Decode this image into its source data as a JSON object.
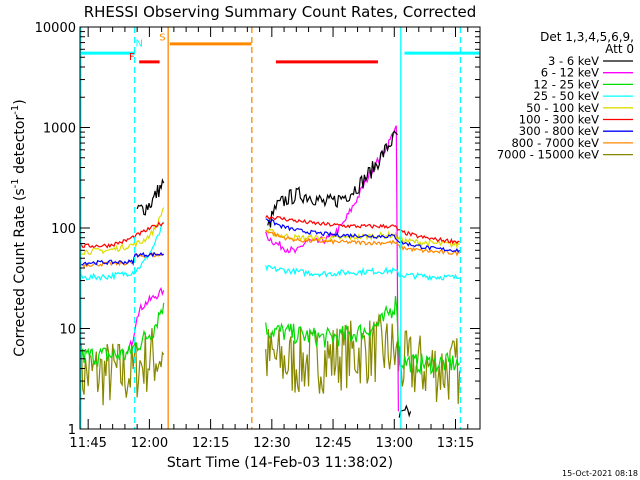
{
  "chart_data": {
    "type": "line",
    "title": "RHESSI Observing Summary Count Rates, Corrected",
    "xlabel": "Start Time (14-Feb-03 11:38:02)",
    "ylabel_main": "Corrected Count Rate (s",
    "ylabel_sup1": "-1",
    "ylabel_mid": " detector",
    "ylabel_sup2": "-1",
    "ylabel_end": ")",
    "footer": "15-Oct-2021 08:18",
    "y_scale": "log",
    "ylim": [
      1,
      10000
    ],
    "xlim": [
      -17,
      81
    ],
    "y_ticks": [
      {
        "v": 1,
        "label": "1"
      },
      {
        "v": 10,
        "label": "10"
      },
      {
        "v": 100,
        "label": "100"
      },
      {
        "v": 1000,
        "label": "1000"
      },
      {
        "v": 10000,
        "label": "10000"
      }
    ],
    "x_ticks": [
      {
        "t": -15,
        "label": "11:45"
      },
      {
        "t": 0,
        "label": "12:00"
      },
      {
        "t": 15,
        "label": "12:15"
      },
      {
        "t": 30,
        "label": "12:30"
      },
      {
        "t": 45,
        "label": "12:45"
      },
      {
        "t": 60,
        "label": "13:00"
      },
      {
        "t": 75,
        "label": "13:15"
      }
    ],
    "legend": {
      "header1": "Det 1,3,4,5,6,9,",
      "header2": "Att 0",
      "items": [
        {
          "label": "3 - 6 keV",
          "color": "#000000"
        },
        {
          "label": "6 - 12 keV",
          "color": "#ff00ff"
        },
        {
          "label": "12 - 25 keV",
          "color": "#00dd00"
        },
        {
          "label": "25 - 50 keV",
          "color": "#00ffff"
        },
        {
          "label": "50 - 100 keV",
          "color": "#dddd00"
        },
        {
          "label": "100 - 300 keV",
          "color": "#ff0000"
        },
        {
          "label": "300 - 800 keV",
          "color": "#0000ff"
        },
        {
          "label": "800 - 7000 keV",
          "color": "#ff8800"
        },
        {
          "label": "7000 - 15000 keV",
          "color": "#888800"
        }
      ]
    },
    "flags": [
      {
        "label": "N",
        "color": "#00ffff",
        "segments": [
          [
            -17,
            -3.5
          ],
          [
            62.5,
            81
          ]
        ],
        "y": 5500
      },
      {
        "label": "F",
        "color": "#ff0000",
        "segments": [
          [
            -2.5,
            2.5
          ],
          [
            31,
            56
          ]
        ],
        "y": 4500
      },
      {
        "label": "S",
        "color": "#ff8800",
        "segments": [
          [
            5,
            25
          ]
        ],
        "y": 6800
      }
    ],
    "flag_letters": [
      {
        "text": "N",
        "color": "#00ffff",
        "t": -2.5,
        "y": 6400
      },
      {
        "text": "F",
        "color": "#ff0000",
        "t": -4.3,
        "y": 4700
      },
      {
        "text": "S",
        "color": "#ff8800",
        "t": 3.2,
        "y": 7300
      }
    ],
    "vlines": [
      {
        "t": -16.8,
        "color": "#00ffff",
        "dash": false
      },
      {
        "t": -3.6,
        "color": "#00ffff",
        "dash": true
      },
      {
        "t": 4.6,
        "color": "#ff8800",
        "dash": false
      },
      {
        "t": 25.1,
        "color": "#ff8800",
        "dash": true
      },
      {
        "t": 61.6,
        "color": "#00ffff",
        "dash": false
      },
      {
        "t": 76.2,
        "color": "#00ffff",
        "dash": true
      }
    ],
    "series": [
      {
        "name": "7000 - 15000 keV",
        "color": "#888800",
        "noise": 0.35,
        "segments": [
          [
            [
              -17,
              3.5
            ],
            [
              -4,
              3.6
            ],
            [
              -3,
              4.2
            ],
            [
              0,
              5.0
            ],
            [
              3.5,
              5.5
            ]
          ],
          [
            [
              28.5,
              5.2
            ],
            [
              35,
              4.5
            ],
            [
              45,
              5.2
            ],
            [
              55,
              6.2
            ],
            [
              59.5,
              6.0
            ],
            [
              62,
              4.3
            ],
            [
              76,
              3.8
            ]
          ]
        ]
      },
      {
        "name": "6 - 12 keV",
        "color": "#ff00ff",
        "noise": 0.04,
        "segments": [
          [
            [
              -5.5,
              5.5
            ],
            [
              -4,
              8
            ],
            [
              -3,
              14
            ],
            [
              -1.5,
              17
            ],
            [
              0,
              19
            ],
            [
              1.5,
              21
            ],
            [
              3.5,
              24
            ]
          ],
          [
            [
              28.5,
              85
            ],
            [
              31,
              70
            ],
            [
              33.5,
              63
            ],
            [
              36,
              57
            ],
            [
              38.5,
              75
            ],
            [
              41,
              72
            ],
            [
              44.5,
              80
            ],
            [
              47.5,
              110
            ],
            [
              51,
              200
            ],
            [
              54,
              350
            ],
            [
              56.5,
              500
            ],
            [
              59,
              750
            ],
            [
              60,
              950
            ],
            [
              60.5,
              960
            ],
            [
              61,
              1.5
            ]
          ]
        ]
      },
      {
        "name": "3 - 6 keV",
        "color": "#000000",
        "noise": 0.08,
        "segments": [
          [
            [
              -3,
              150
            ],
            [
              -1,
              160
            ],
            [
              0.5,
              180
            ],
            [
              2,
              230
            ],
            [
              3.5,
              280
            ]
          ],
          [
            [
              29,
              100
            ],
            [
              31,
              160
            ],
            [
              34,
              200
            ],
            [
              37,
              215
            ],
            [
              40,
              205
            ],
            [
              43,
              175
            ],
            [
              46,
              190
            ],
            [
              49,
              220
            ],
            [
              52,
              285
            ],
            [
              55,
              400
            ],
            [
              58,
              610
            ],
            [
              60,
              800
            ],
            [
              60.8,
              850
            ]
          ],
          [
            [
              61.2,
              1.3
            ],
            [
              64,
              1.5
            ]
          ]
        ]
      },
      {
        "name": "12 - 25 keV",
        "color": "#00dd00",
        "noise": 0.1,
        "segments": [
          [
            [
              -17,
              5.3
            ],
            [
              -5,
              5.5
            ],
            [
              -3.5,
              6.8
            ],
            [
              -1,
              8
            ],
            [
              1,
              10
            ],
            [
              3.5,
              18
            ]
          ],
          [
            [
              28.5,
              9.8
            ],
            [
              33,
              9.2
            ],
            [
              38,
              8.5
            ],
            [
              43,
              8.0
            ],
            [
              48,
              8.5
            ],
            [
              53,
              9.5
            ],
            [
              57,
              11.5
            ],
            [
              60,
              17
            ],
            [
              60.6,
              19
            ],
            [
              61.2,
              4.8
            ],
            [
              65,
              4.5
            ],
            [
              76,
              4.5
            ]
          ]
        ]
      },
      {
        "name": "25 - 50 keV",
        "color": "#00ffff",
        "noise": 0.03,
        "segments": [
          [
            [
              -17,
              32
            ],
            [
              -10,
              33
            ],
            [
              -6,
              35
            ],
            [
              -3.5,
              37
            ],
            [
              -1.5,
              45
            ],
            [
              0.5,
              60
            ],
            [
              2,
              80
            ],
            [
              3.5,
              115
            ]
          ],
          [
            [
              28.5,
              40
            ],
            [
              33,
              38
            ],
            [
              38,
              36
            ],
            [
              43,
              35
            ],
            [
              48,
              36
            ],
            [
              54,
              37
            ],
            [
              60,
              37.5
            ],
            [
              61.5,
              34
            ],
            [
              68,
              33
            ],
            [
              76,
              32
            ]
          ]
        ]
      },
      {
        "name": "50 - 100 keV",
        "color": "#dddd00",
        "noise": 0.03,
        "segments": [
          [
            [
              -17,
              58
            ],
            [
              -10,
              60
            ],
            [
              -6,
              65
            ],
            [
              -2,
              72
            ],
            [
              0.5,
              88
            ],
            [
              2,
              110
            ],
            [
              3.5,
              160
            ]
          ],
          [
            [
              28.5,
              95
            ],
            [
              32,
              85
            ],
            [
              36,
              80
            ],
            [
              40,
              80
            ],
            [
              44,
              78
            ],
            [
              48,
              80
            ],
            [
              52,
              82
            ],
            [
              56,
              84
            ],
            [
              60,
              85
            ],
            [
              61.5,
              76
            ],
            [
              66,
              72
            ],
            [
              70,
              70
            ],
            [
              76,
              68
            ]
          ]
        ]
      },
      {
        "name": "800 - 7000 keV",
        "color": "#ff8800",
        "noise": 0.02,
        "segments": [
          [
            [
              -17,
              43
            ],
            [
              -4,
              45
            ],
            [
              -3.5,
              53
            ],
            [
              3.5,
              54
            ]
          ],
          [
            [
              28.5,
              95
            ],
            [
              32,
              82
            ],
            [
              36,
              76
            ],
            [
              40,
              74
            ],
            [
              45,
              73
            ],
            [
              50,
              72
            ],
            [
              55,
              71
            ],
            [
              60,
              72
            ],
            [
              61.5,
              64
            ],
            [
              66,
              60
            ],
            [
              70,
              58
            ],
            [
              76,
              56
            ]
          ]
        ]
      },
      {
        "name": "300 - 800 keV",
        "color": "#0000ff",
        "noise": 0.02,
        "segments": [
          [
            [
              -17,
              45
            ],
            [
              -4,
              46
            ],
            [
              -3.5,
              54
            ],
            [
              3.5,
              55
            ]
          ],
          [
            [
              28.5,
              125
            ],
            [
              32,
              105
            ],
            [
              36,
              95
            ],
            [
              41,
              89
            ],
            [
              46,
              85
            ],
            [
              51,
              84
            ],
            [
              56,
              83
            ],
            [
              60,
              83
            ],
            [
              61.5,
              72
            ],
            [
              66,
              66
            ],
            [
              70,
              62
            ],
            [
              76,
              60
            ]
          ]
        ]
      },
      {
        "name": "100 - 300 keV",
        "color": "#ff0000",
        "noise": 0.02,
        "segments": [
          [
            [
              -17,
              66
            ],
            [
              -10,
              67
            ],
            [
              -6,
              74
            ],
            [
              -3,
              85
            ],
            [
              0,
              98
            ],
            [
              2,
              108
            ],
            [
              3.5,
              112
            ]
          ],
          [
            [
              28.5,
              130
            ],
            [
              32,
              125
            ],
            [
              36,
              118
            ],
            [
              40,
              112
            ],
            [
              44,
              108
            ],
            [
              48,
              105
            ],
            [
              52,
              104
            ],
            [
              56,
              104
            ],
            [
              60,
              104
            ],
            [
              61.5,
              92
            ],
            [
              66,
              82
            ],
            [
              70,
              77
            ],
            [
              76,
              73
            ]
          ]
        ]
      }
    ]
  }
}
